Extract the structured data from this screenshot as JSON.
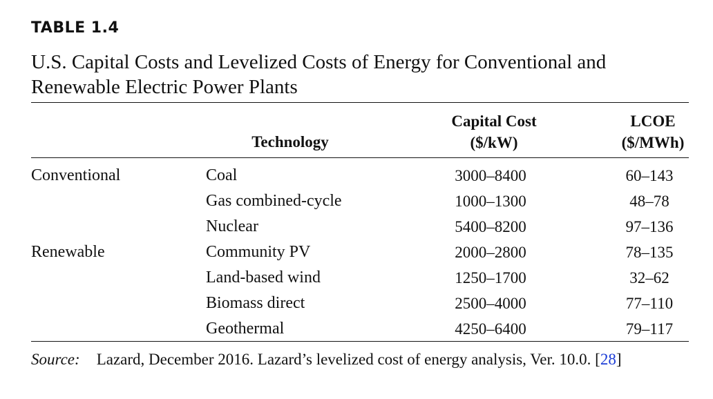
{
  "table_number": "TABLE 1.4",
  "caption": "U.S. Capital Costs and Levelized Costs of Energy for Conventional and Renewable Electric Power Plants",
  "headers": {
    "technology": "Technology",
    "capital_cost_line1": "Capital Cost",
    "capital_cost_line2": "($/kW)",
    "lcoe_line1": "LCOE",
    "lcoe_line2": "($/MWh)"
  },
  "rows": [
    {
      "group": "Conventional",
      "technology": "Coal",
      "capital_cost": "3000–8400",
      "lcoe": "60–143"
    },
    {
      "group": "",
      "technology": "Gas combined-cycle",
      "capital_cost": "1000–1300",
      "lcoe": "48–78"
    },
    {
      "group": "",
      "technology": "Nuclear",
      "capital_cost": "5400–8200",
      "lcoe": "97–136"
    },
    {
      "group": "Renewable",
      "technology": "Community PV",
      "capital_cost": "2000–2800",
      "lcoe": "78–135"
    },
    {
      "group": "",
      "technology": "Land-based wind",
      "capital_cost": "1250–1700",
      "lcoe": "32–62"
    },
    {
      "group": "",
      "technology": "Biomass direct",
      "capital_cost": "2500–4000",
      "lcoe": "77–110"
    },
    {
      "group": "",
      "technology": "Geothermal",
      "capital_cost": "4250–6400",
      "lcoe": "79–117"
    }
  ],
  "source": {
    "label": "Source:",
    "text": "Lazard, December 2016. Lazard’s levelized cost of energy analysis, Ver. 10.0. [",
    "reference": "28",
    "close": "]"
  },
  "colors": {
    "text": "#111111",
    "link": "#1a3bd6",
    "background": "#ffffff"
  }
}
